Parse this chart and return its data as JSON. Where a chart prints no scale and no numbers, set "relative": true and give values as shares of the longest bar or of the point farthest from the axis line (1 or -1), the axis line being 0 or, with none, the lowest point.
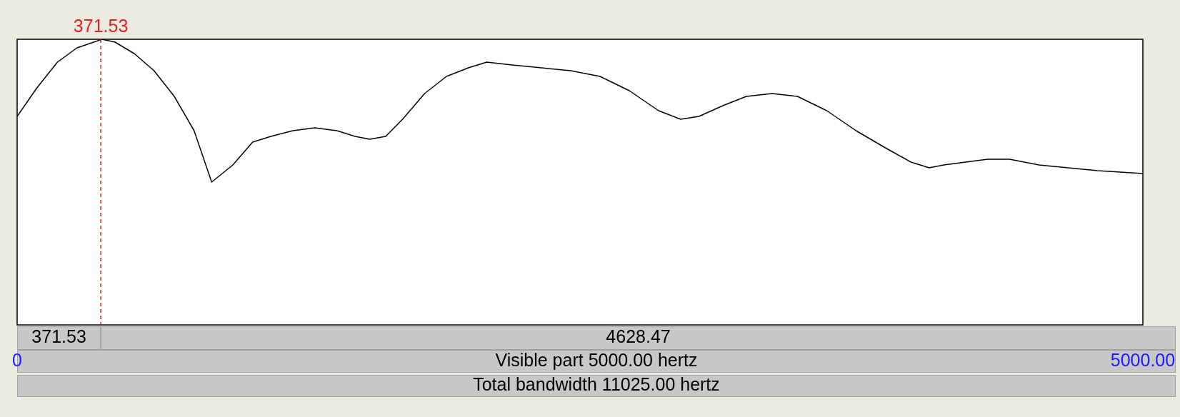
{
  "chart_data": {
    "type": "line",
    "relative": true,
    "color": "#000000",
    "x": [
      0,
      88,
      179,
      266,
      377,
      435,
      520,
      608,
      698,
      786,
      864,
      958,
      1046,
      1127,
      1225,
      1322,
      1420,
      1501,
      1566,
      1637,
      1712,
      1810,
      1907,
      2004,
      2086,
      2199,
      2329,
      2459,
      2589,
      2719,
      2849,
      2947,
      3028,
      3142,
      3239,
      3353,
      3466,
      3596,
      3726,
      3856,
      3970,
      4051,
      4116,
      4213,
      4311,
      4408,
      4538,
      4668,
      4798,
      5000
    ],
    "values": [
      0.73,
      0.83,
      0.92,
      0.97,
      1.0,
      0.99,
      0.95,
      0.89,
      0.8,
      0.68,
      0.5,
      0.56,
      0.64,
      0.66,
      0.68,
      0.69,
      0.68,
      0.66,
      0.65,
      0.66,
      0.72,
      0.81,
      0.87,
      0.9,
      0.92,
      0.91,
      0.9,
      0.89,
      0.87,
      0.82,
      0.75,
      0.72,
      0.73,
      0.77,
      0.8,
      0.81,
      0.8,
      0.75,
      0.68,
      0.62,
      0.57,
      0.55,
      0.56,
      0.57,
      0.58,
      0.58,
      0.56,
      0.55,
      0.54,
      0.53
    ],
    "xlim": [
      0,
      5000
    ],
    "xticks": [
      {
        "value": 0,
        "label": "0"
      },
      {
        "value": 5000,
        "label": "5000.00"
      }
    ],
    "ref_lines": [
      {
        "axis": "x",
        "value": 371.53,
        "label": "371.53",
        "color": "#e02020",
        "line_style": "dashed"
      }
    ],
    "annotations": [
      "371.53",
      "4628.47",
      "Visible part 5000.00 hertz",
      "Total bandwidth 11025.00 hertz"
    ]
  }
}
